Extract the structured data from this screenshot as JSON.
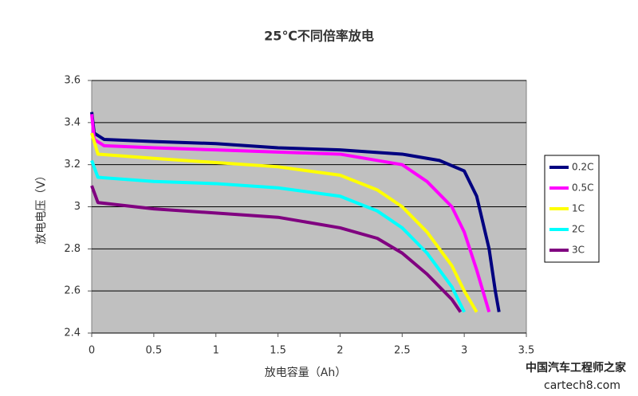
{
  "chart_data": {
    "type": "line",
    "title": "25℃不同倍率放电",
    "x_label": "放电容量（Ah）",
    "y_label": "放电电压（V）",
    "xlim": [
      0,
      3.5
    ],
    "xticks": [
      0,
      0.5,
      1,
      1.5,
      2,
      2.5,
      3,
      3.5
    ],
    "ylim": [
      2.4,
      3.6
    ],
    "yticks": [
      2.4,
      2.6,
      2.8,
      3,
      3.2,
      3.4,
      3.6
    ],
    "grid": true,
    "legend": "right",
    "series": [
      {
        "name": "0.2C",
        "color": "#000080",
        "x": [
          0,
          0.02,
          0.1,
          0.5,
          1,
          1.5,
          2,
          2.5,
          2.8,
          3.0,
          3.1,
          3.2,
          3.25,
          3.28
        ],
        "values": [
          3.45,
          3.35,
          3.32,
          3.31,
          3.3,
          3.28,
          3.27,
          3.25,
          3.22,
          3.17,
          3.05,
          2.8,
          2.6,
          2.5
        ]
      },
      {
        "name": "0.5C",
        "color": "#ff00ff",
        "x": [
          0,
          0.02,
          0.1,
          0.5,
          1,
          1.5,
          2,
          2.5,
          2.7,
          2.9,
          3.0,
          3.1,
          3.2
        ],
        "values": [
          3.44,
          3.32,
          3.29,
          3.28,
          3.27,
          3.26,
          3.25,
          3.2,
          3.12,
          3.0,
          2.88,
          2.7,
          2.5
        ]
      },
      {
        "name": "1C",
        "color": "#ffff00",
        "x": [
          0,
          0.05,
          0.5,
          1,
          1.5,
          2,
          2.3,
          2.5,
          2.7,
          2.9,
          3.0,
          3.1
        ],
        "values": [
          3.35,
          3.25,
          3.23,
          3.21,
          3.19,
          3.15,
          3.08,
          3.0,
          2.88,
          2.72,
          2.6,
          2.5
        ]
      },
      {
        "name": "2C",
        "color": "#00ffff",
        "x": [
          0,
          0.05,
          0.5,
          1,
          1.5,
          2,
          2.3,
          2.5,
          2.7,
          2.9,
          3.0
        ],
        "values": [
          3.22,
          3.14,
          3.12,
          3.11,
          3.09,
          3.05,
          2.98,
          2.9,
          2.78,
          2.62,
          2.5
        ]
      },
      {
        "name": "3C",
        "color": "#800080",
        "x": [
          0,
          0.05,
          0.5,
          1,
          1.5,
          2,
          2.3,
          2.5,
          2.7,
          2.9,
          2.97
        ],
        "values": [
          3.1,
          3.02,
          2.99,
          2.97,
          2.95,
          2.9,
          2.85,
          2.78,
          2.68,
          2.56,
          2.5
        ]
      }
    ]
  },
  "watermark": {
    "name": "中国汽车工程师之家",
    "site": "cartech8.com"
  }
}
